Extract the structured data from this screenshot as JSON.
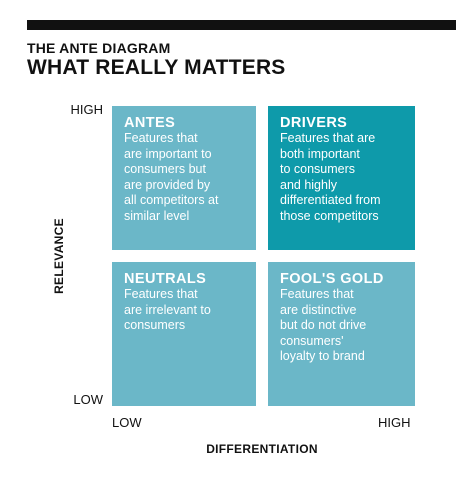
{
  "header": {
    "kicker": "THE ANTE DIAGRAM",
    "title": "WHAT REALLY MATTERS"
  },
  "axes": {
    "y": {
      "title": "RELEVANCE",
      "high": "HIGH",
      "low": "LOW"
    },
    "x": {
      "title": "DIFFERENTIATION",
      "low": "LOW",
      "high": "HIGH"
    }
  },
  "quadrants": {
    "antes": {
      "title": "ANTES",
      "lines": [
        "Features that",
        "are important to",
        "consumers but",
        "are provided by",
        "all competitors at",
        "similar level"
      ]
    },
    "drivers": {
      "title": "DRIVERS",
      "lines": [
        "Features that are",
        "both important",
        "to consumers",
        "and highly",
        "differentiated from",
        "those competitors"
      ]
    },
    "neutrals": {
      "title": "NEUTRALS",
      "lines": [
        "Features that",
        "are irrelevant to",
        "consumers"
      ]
    },
    "fools_gold": {
      "title": "FOOL'S GOLD",
      "lines": [
        "Features that",
        "are distinctive",
        "but do not drive",
        "consumers'",
        "loyalty to brand"
      ]
    }
  },
  "colors": {
    "quadrant_light": "#6bb7c8",
    "quadrant_highlight": "#0e9aaa",
    "text_dark": "#111111",
    "text_on_quadrant": "#ffffff"
  }
}
